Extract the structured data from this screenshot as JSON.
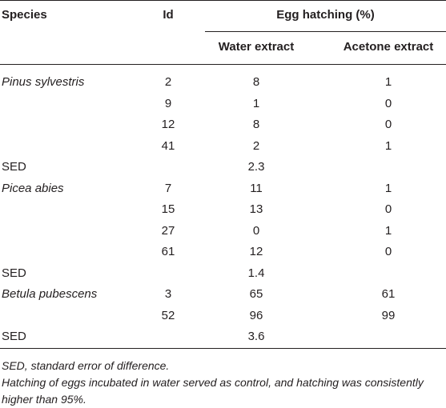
{
  "table": {
    "headers": {
      "species": "Species",
      "id": "Id",
      "egg_hatching": "Egg hatching (%)",
      "water_extract": "Water extract",
      "acetone_extract": "Acetone extract"
    },
    "rows": [
      {
        "species": "Pinus sylvestris",
        "id": "2",
        "water": "8",
        "acetone": "1"
      },
      {
        "species": "",
        "id": "9",
        "water": "1",
        "acetone": "0"
      },
      {
        "species": "",
        "id": "12",
        "water": "8",
        "acetone": "0"
      },
      {
        "species": "",
        "id": "41",
        "water": "2",
        "acetone": "1"
      },
      {
        "species": "SED",
        "id": "",
        "water": "2.3",
        "acetone": ""
      },
      {
        "species": "Picea abies",
        "id": "7",
        "water": "11",
        "acetone": "1"
      },
      {
        "species": "",
        "id": "15",
        "water": "13",
        "acetone": "0"
      },
      {
        "species": "",
        "id": "27",
        "water": "0",
        "acetone": "1"
      },
      {
        "species": "",
        "id": "61",
        "water": "12",
        "acetone": "0"
      },
      {
        "species": "SED",
        "id": "",
        "water": "1.4",
        "acetone": ""
      },
      {
        "species": "Betula pubescens",
        "id": "3",
        "water": "65",
        "acetone": "61"
      },
      {
        "species": "",
        "id": "52",
        "water": "96",
        "acetone": "99"
      },
      {
        "species": "SED",
        "id": "",
        "water": "3.6",
        "acetone": ""
      }
    ]
  },
  "footnotes": {
    "sed_note": "SED, standard error of difference.",
    "control_note": "Hatching of eggs incubated in water served as control, and hatching was consistently higher than 95%."
  }
}
